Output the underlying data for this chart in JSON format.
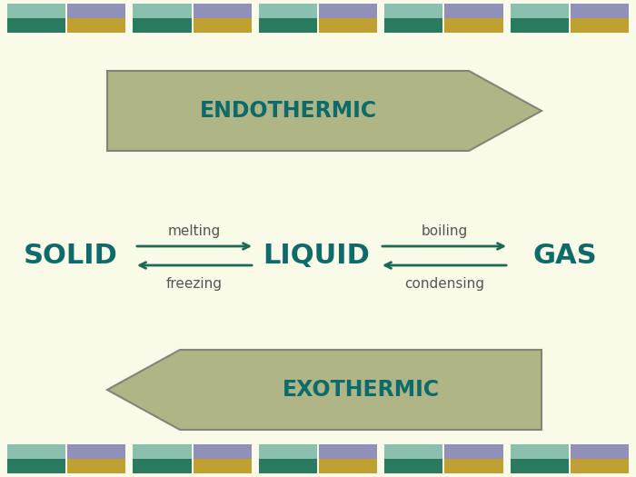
{
  "bg_color": "#FAFAE8",
  "arrow_fill": "#B0B585",
  "arrow_edge": "#808578",
  "text_color_dark": "#0D6B6B",
  "title": "ENDOTHERMIC",
  "title2": "EXOTHERMIC",
  "solid_label": "SOLID",
  "liquid_label": "LIQUID",
  "gas_label": "GAS",
  "melting": "melting",
  "freezing": "freezing",
  "boiling": "boiling",
  "condensing": "condensing",
  "arrow_color": "#1A6B55",
  "label_color": "#555555",
  "tile_teal_light": "#8BBFB0",
  "tile_purple": "#9090B8",
  "tile_teal_dark": "#2A7A60",
  "tile_gold": "#C0A030",
  "tile_groups": 5,
  "figw": 7.0,
  "figh": 5.25,
  "dpi": 100
}
